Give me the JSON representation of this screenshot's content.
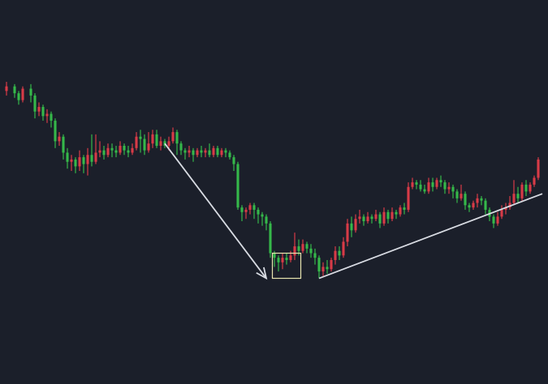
{
  "colors": {
    "background": "#1b1f2a",
    "up": "#d83b47",
    "down": "#35b84a",
    "annotation": "#d8dbe2",
    "highlight_box": "#e8e6b0"
  },
  "chart_data": {
    "type": "candlestick",
    "grid": false,
    "legend": "none",
    "xlim": [
      0,
      132
    ],
    "ylim": [
      0,
      100
    ],
    "candles": [
      [
        0,
        85,
        87,
        83,
        89
      ],
      [
        2,
        87,
        84,
        82,
        88
      ],
      [
        3,
        84,
        81,
        79,
        85
      ],
      [
        4,
        81,
        86,
        80,
        87
      ],
      [
        6,
        86,
        83,
        80,
        88
      ],
      [
        7,
        83,
        76,
        73,
        84
      ],
      [
        8,
        76,
        78,
        74,
        80
      ],
      [
        9,
        78,
        74,
        72,
        79
      ],
      [
        10,
        74,
        75,
        71,
        77
      ],
      [
        11,
        75,
        72,
        69,
        76
      ],
      [
        12,
        72,
        63,
        60,
        73
      ],
      [
        13,
        63,
        65,
        61,
        67
      ],
      [
        14,
        65,
        58,
        55,
        66
      ],
      [
        15,
        58,
        54,
        51,
        60
      ],
      [
        16,
        54,
        55,
        50,
        57
      ],
      [
        17,
        55,
        52,
        49,
        56
      ],
      [
        18,
        52,
        56,
        50,
        59
      ],
      [
        19,
        56,
        53,
        49,
        57
      ],
      [
        20,
        53,
        57,
        48,
        60
      ],
      [
        21,
        57,
        54,
        52,
        66
      ],
      [
        22,
        54,
        58,
        53,
        66
      ],
      [
        23,
        58,
        59,
        56,
        63
      ],
      [
        24,
        59,
        57,
        55,
        61
      ],
      [
        25,
        57,
        60,
        56,
        62
      ],
      [
        26,
        60,
        59,
        56,
        62
      ],
      [
        27,
        59,
        58,
        56,
        61
      ],
      [
        28,
        58,
        61,
        57,
        63
      ],
      [
        29,
        61,
        59,
        57,
        62
      ],
      [
        30,
        59,
        58,
        56,
        61
      ],
      [
        31,
        58,
        60,
        57,
        62
      ],
      [
        32,
        60,
        65,
        59,
        67
      ],
      [
        33,
        65,
        64,
        58,
        68
      ],
      [
        34,
        64,
        59,
        57,
        66
      ],
      [
        35,
        59,
        62,
        58,
        67
      ],
      [
        36,
        62,
        66,
        60,
        68
      ],
      [
        37,
        66,
        61,
        60,
        68
      ],
      [
        38,
        61,
        63,
        59,
        65
      ],
      [
        39,
        63,
        61,
        60,
        64
      ],
      [
        40,
        61,
        63,
        59,
        65
      ],
      [
        41,
        63,
        67,
        62,
        69
      ],
      [
        42,
        67,
        62,
        57,
        68
      ],
      [
        43,
        62,
        59,
        57,
        63
      ],
      [
        44,
        59,
        58,
        55,
        60
      ],
      [
        45,
        58,
        59,
        56,
        61
      ],
      [
        46,
        59,
        57,
        54,
        60
      ],
      [
        47,
        57,
        59,
        56,
        60
      ],
      [
        48,
        59,
        58,
        56,
        61
      ],
      [
        49,
        58,
        59,
        56,
        60
      ],
      [
        50,
        59,
        57,
        56,
        62
      ],
      [
        51,
        57,
        60,
        56,
        61
      ],
      [
        52,
        60,
        57,
        56,
        61
      ],
      [
        53,
        57,
        59,
        56,
        60
      ],
      [
        54,
        59,
        58,
        56,
        60
      ],
      [
        55,
        58,
        56,
        55,
        59
      ],
      [
        56,
        56,
        53,
        50,
        57
      ],
      [
        57,
        53,
        34,
        33,
        54
      ],
      [
        58,
        34,
        32,
        28,
        35
      ],
      [
        59,
        32,
        33,
        29,
        34
      ],
      [
        60,
        33,
        35,
        31,
        36
      ],
      [
        61,
        35,
        33,
        29,
        36
      ],
      [
        62,
        33,
        31,
        27,
        34
      ],
      [
        63,
        31,
        30,
        26,
        32
      ],
      [
        64,
        30,
        27,
        24,
        31
      ],
      [
        65,
        27,
        14,
        12,
        28
      ],
      [
        66,
        14,
        12,
        8,
        15
      ],
      [
        67,
        12,
        10,
        6,
        13
      ],
      [
        68,
        10,
        12,
        7,
        14
      ],
      [
        69,
        12,
        11,
        9,
        14
      ],
      [
        70,
        11,
        13,
        10,
        15
      ],
      [
        71,
        13,
        17,
        11,
        23
      ],
      [
        72,
        17,
        15,
        13,
        20
      ],
      [
        73,
        15,
        18,
        14,
        20
      ],
      [
        74,
        18,
        16,
        14,
        19
      ],
      [
        75,
        16,
        14,
        12,
        18
      ],
      [
        76,
        14,
        12,
        9,
        16
      ],
      [
        77,
        12,
        6,
        3,
        13
      ],
      [
        78,
        6,
        8,
        4,
        10
      ],
      [
        79,
        8,
        7,
        5,
        11
      ],
      [
        80,
        7,
        11,
        6,
        12
      ],
      [
        81,
        11,
        15,
        9,
        17
      ],
      [
        82,
        15,
        13,
        11,
        17
      ],
      [
        83,
        13,
        19,
        12,
        21
      ],
      [
        84,
        19,
        27,
        17,
        29
      ],
      [
        85,
        27,
        24,
        21,
        30
      ],
      [
        86,
        24,
        29,
        23,
        31
      ],
      [
        87,
        29,
        30,
        27,
        33
      ],
      [
        88,
        30,
        28,
        26,
        31
      ],
      [
        89,
        28,
        30,
        27,
        32
      ],
      [
        90,
        30,
        29,
        27,
        31
      ],
      [
        91,
        29,
        31,
        28,
        33
      ],
      [
        92,
        31,
        27,
        25,
        32
      ],
      [
        93,
        27,
        32,
        26,
        34
      ],
      [
        94,
        32,
        29,
        27,
        33
      ],
      [
        95,
        29,
        32,
        28,
        34
      ],
      [
        96,
        32,
        31,
        29,
        33
      ],
      [
        97,
        31,
        34,
        30,
        35
      ],
      [
        98,
        34,
        33,
        31,
        36
      ],
      [
        99,
        33,
        43,
        32,
        45
      ],
      [
        100,
        43,
        45,
        42,
        47
      ],
      [
        101,
        45,
        44,
        42,
        46
      ],
      [
        102,
        44,
        42,
        41,
        46
      ],
      [
        103,
        42,
        41,
        40,
        44
      ],
      [
        104,
        41,
        45,
        40,
        47
      ],
      [
        105,
        45,
        43,
        41,
        47
      ],
      [
        106,
        43,
        46,
        42,
        47
      ],
      [
        107,
        46,
        45,
        43,
        48
      ],
      [
        108,
        45,
        42,
        40,
        46
      ],
      [
        109,
        42,
        43,
        40,
        45
      ],
      [
        110,
        43,
        41,
        38,
        44
      ],
      [
        111,
        41,
        38,
        36,
        42
      ],
      [
        112,
        38,
        40,
        37,
        44
      ],
      [
        113,
        40,
        35,
        33,
        41
      ],
      [
        114,
        35,
        34,
        32,
        36
      ],
      [
        115,
        34,
        36,
        33,
        37
      ],
      [
        116,
        36,
        38,
        34,
        40
      ],
      [
        117,
        38,
        37,
        35,
        39
      ],
      [
        118,
        37,
        33,
        31,
        38
      ],
      [
        119,
        33,
        30,
        28,
        34
      ],
      [
        120,
        30,
        27,
        25,
        31
      ],
      [
        121,
        27,
        30,
        26,
        32
      ],
      [
        122,
        30,
        33,
        29,
        35
      ],
      [
        123,
        33,
        34,
        31,
        36
      ],
      [
        124,
        34,
        36,
        33,
        39
      ],
      [
        125,
        36,
        40,
        35,
        46
      ],
      [
        126,
        40,
        38,
        36,
        43
      ],
      [
        127,
        38,
        44,
        37,
        45
      ],
      [
        128,
        44,
        41,
        39,
        46
      ],
      [
        129,
        41,
        44,
        40,
        45
      ],
      [
        130,
        44,
        47,
        43,
        48
      ],
      [
        131,
        47,
        55,
        46,
        56
      ]
    ],
    "annotations": {
      "down_arrow": {
        "from": [
          39,
          62
        ],
        "to": [
          64,
          3
        ]
      },
      "highlight_box": {
        "x_range": [
          66,
          72
        ],
        "y_range": [
          3,
          14
        ]
      },
      "uptrend_line": {
        "from": [
          77,
          3
        ],
        "to": [
          132,
          40
        ]
      }
    }
  }
}
